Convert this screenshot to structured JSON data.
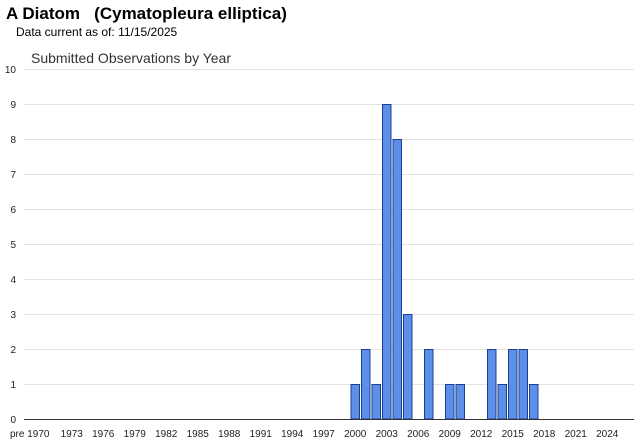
{
  "header": {
    "common_name": "A Diatom",
    "scientific_name": "(Cymatopleura elliptica)",
    "data_current_label": "Data current as of:",
    "data_current_date": "11/15/2025"
  },
  "chart_data": {
    "type": "bar",
    "title": "Submitted Observations by Year",
    "xlabel": "",
    "ylabel": "",
    "ylim": [
      0,
      10
    ],
    "yticks": [
      "0",
      "1",
      "2",
      "3",
      "4",
      "5",
      "6",
      "7",
      "8",
      "9",
      "10"
    ],
    "categories": [
      "pre 1970",
      "1970",
      "1971",
      "1972",
      "1973",
      "1974",
      "1975",
      "1976",
      "1977",
      "1978",
      "1979",
      "1980",
      "1981",
      "1982",
      "1983",
      "1984",
      "1985",
      "1986",
      "1987",
      "1988",
      "1989",
      "1990",
      "1991",
      "1992",
      "1993",
      "1994",
      "1995",
      "1996",
      "1997",
      "1998",
      "1999",
      "2000",
      "2001",
      "2002",
      "2003",
      "2004",
      "2005",
      "2006",
      "2007",
      "2008",
      "2009",
      "2010",
      "2011",
      "2012",
      "2013",
      "2014",
      "2015",
      "2016",
      "2017",
      "2018",
      "2019",
      "2020",
      "2021",
      "2022",
      "2023",
      "2024",
      "2025"
    ],
    "values": [
      0,
      0,
      0,
      0,
      0,
      0,
      0,
      0,
      0,
      0,
      0,
      0,
      0,
      0,
      0,
      0,
      0,
      0,
      0,
      0,
      0,
      0,
      0,
      0,
      0,
      0,
      0,
      0,
      0,
      0,
      0,
      1,
      2,
      1,
      9,
      8,
      3,
      0,
      2,
      0,
      1,
      1,
      0,
      0,
      2,
      1,
      2,
      2,
      1,
      0,
      0,
      0,
      0,
      0,
      0,
      0,
      0
    ],
    "xtick_labels": [
      "pre 1970",
      "1973",
      "1976",
      "1979",
      "1982",
      "1985",
      "1988",
      "1991",
      "1994",
      "1997",
      "2000",
      "2003",
      "2006",
      "2009",
      "2012",
      "2015",
      "2018",
      "2021",
      "2024"
    ],
    "grid": true,
    "legend": "none",
    "bar_color": "#5B8FE8",
    "bar_edge_color": "#1C3F94"
  }
}
